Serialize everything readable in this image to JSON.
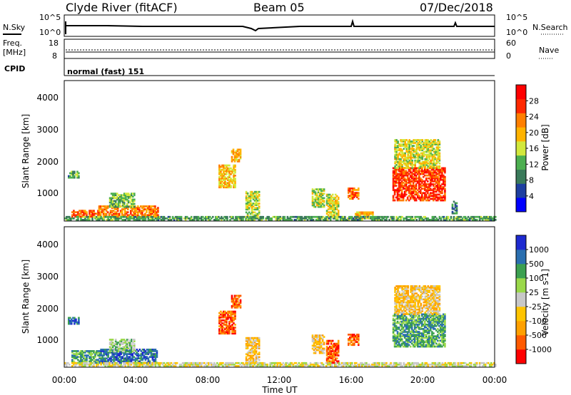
{
  "header": {
    "station": "Clyde River (fitACF)",
    "beam": "Beam 05",
    "date": "07/Dec/2018"
  },
  "info_panel": {
    "left_labels": [
      "N.Sky",
      "Freq.",
      "[MHz]",
      "CPID"
    ],
    "right_labels": [
      "N.Search",
      "Nave"
    ],
    "nsky_ticks": [
      "10^5",
      "10^0"
    ],
    "nsearch_ticks": [
      "10^5",
      "10^0"
    ],
    "freq_ticks": [
      "18",
      "8"
    ],
    "nave_ticks": [
      "60",
      "0"
    ],
    "cpid_text": "normal (fast) 151"
  },
  "x_axis": {
    "label": "Time UT",
    "ticks": [
      "00:00",
      "04:00",
      "08:00",
      "12:00",
      "16:00",
      "20:00",
      "00:00"
    ]
  },
  "colors": {
    "power": [
      "#0000ff",
      "#1e3fa0",
      "#3a7a5a",
      "#4caf50",
      "#d2e83c",
      "#ffb300",
      "#ff7f00",
      "#ff2800",
      "#ff0000"
    ],
    "velocity": [
      "#ff0000",
      "#ff5a00",
      "#ffa000",
      "#ffc400",
      "#c8c8c8",
      "#9ad84a",
      "#3ca050",
      "#2a6fb0",
      "#1e2ad0"
    ],
    "axis": "#000000"
  },
  "chart_data": [
    {
      "type": "heatmap",
      "title": "",
      "xlabel": "",
      "ylabel": "Slant Range [km]",
      "xlim": [
        0,
        24
      ],
      "ylim": [
        180,
        4500
      ],
      "y_ticks": [
        "1000",
        "2000",
        "3000",
        "4000"
      ],
      "colorbar": {
        "label": "Power [dB]",
        "ticks": [
          "4",
          "8",
          "12",
          "16",
          "20",
          "24",
          "28"
        ],
        "range": [
          0,
          30
        ]
      },
      "blobs": [
        {
          "t": [
            0.4,
            2.0
          ],
          "r": [
            300,
            520
          ],
          "v": 24
        },
        {
          "t": [
            1.9,
            5.2
          ],
          "r": [
            300,
            650
          ],
          "v": 22
        },
        {
          "t": [
            2.5,
            3.9
          ],
          "r": [
            600,
            1050
          ],
          "v": 12
        },
        {
          "t": [
            0.2,
            0.8
          ],
          "r": [
            1500,
            1700
          ],
          "v": 10
        },
        {
          "t": [
            8.6,
            9.5
          ],
          "r": [
            1200,
            1900
          ],
          "v": 18
        },
        {
          "t": [
            9.3,
            9.8
          ],
          "r": [
            2000,
            2400
          ],
          "v": 20
        },
        {
          "t": [
            10.1,
            10.9
          ],
          "r": [
            250,
            1100
          ],
          "v": 14
        },
        {
          "t": [
            13.8,
            14.5
          ],
          "r": [
            600,
            1150
          ],
          "v": 14
        },
        {
          "t": [
            14.6,
            15.3
          ],
          "r": [
            300,
            1000
          ],
          "v": 16
        },
        {
          "t": [
            15.8,
            16.4
          ],
          "r": [
            850,
            1200
          ],
          "v": 22
        },
        {
          "t": [
            16.2,
            17.2
          ],
          "r": [
            250,
            450
          ],
          "v": 20
        },
        {
          "t": [
            18.3,
            21.2
          ],
          "r": [
            800,
            1800
          ],
          "v": 26
        },
        {
          "t": [
            18.4,
            20.9
          ],
          "r": [
            1800,
            2700
          ],
          "v": 16
        },
        {
          "t": [
            21.6,
            21.9
          ],
          "r": [
            400,
            800
          ],
          "v": 8
        },
        {
          "t": [
            0.0,
            24.0
          ],
          "r": [
            200,
            330
          ],
          "v": 10
        }
      ]
    },
    {
      "type": "heatmap",
      "title": "",
      "xlabel": "Time UT",
      "ylabel": "Slant Range [km]",
      "xlim": [
        0,
        24
      ],
      "ylim": [
        180,
        4500
      ],
      "y_ticks": [
        "1000",
        "2000",
        "3000",
        "4000"
      ],
      "colorbar": {
        "label": "Velocity [m s-1]",
        "ticks": [
          "1000",
          "500",
          "100",
          "25",
          "-25",
          "-100",
          "-500",
          "-1000"
        ]
      },
      "blobs": [
        {
          "t": [
            0.4,
            2.0
          ],
          "r": [
            300,
            700
          ],
          "v": "100"
        },
        {
          "t": [
            2.0,
            5.2
          ],
          "r": [
            300,
            750
          ],
          "v": "500"
        },
        {
          "t": [
            2.5,
            3.9
          ],
          "r": [
            650,
            1050
          ],
          "v": "25"
        },
        {
          "t": [
            0.2,
            0.8
          ],
          "r": [
            1500,
            1700
          ],
          "v": "500"
        },
        {
          "t": [
            8.6,
            9.5
          ],
          "r": [
            1200,
            1900
          ],
          "v": "-500"
        },
        {
          "t": [
            9.3,
            9.8
          ],
          "r": [
            2000,
            2400
          ],
          "v": "-500"
        },
        {
          "t": [
            10.1,
            10.9
          ],
          "r": [
            250,
            1100
          ],
          "v": "-100"
        },
        {
          "t": [
            13.8,
            14.5
          ],
          "r": [
            600,
            1150
          ],
          "v": "-100"
        },
        {
          "t": [
            14.6,
            15.3
          ],
          "r": [
            300,
            1000
          ],
          "v": "-500"
        },
        {
          "t": [
            15.8,
            16.4
          ],
          "r": [
            850,
            1200
          ],
          "v": "-500"
        },
        {
          "t": [
            18.3,
            21.2
          ],
          "r": [
            800,
            1800
          ],
          "v": "100"
        },
        {
          "t": [
            18.4,
            20.9
          ],
          "r": [
            1800,
            2700
          ],
          "v": "-100"
        },
        {
          "t": [
            0.0,
            24.0
          ],
          "r": [
            200,
            330
          ],
          "v": "-25"
        }
      ]
    }
  ]
}
